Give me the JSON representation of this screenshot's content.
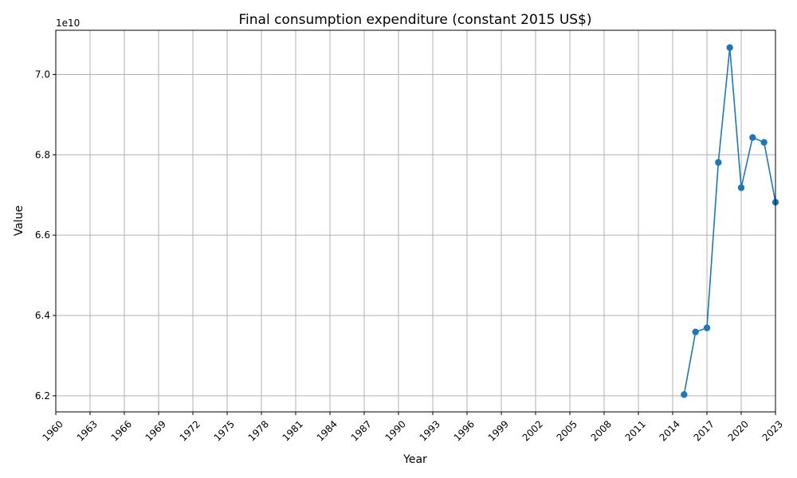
{
  "chart_data": {
    "type": "line",
    "title": "Final consumption expenditure (constant 2015 US$)",
    "xlabel": "Year",
    "ylabel": "Value",
    "y_offset_label": "1e10",
    "xlim": [
      1960,
      2023
    ],
    "ylim": [
      61600000000,
      71100000000
    ],
    "x_ticks": [
      1960,
      1963,
      1966,
      1969,
      1972,
      1975,
      1978,
      1981,
      1984,
      1987,
      1990,
      1993,
      1996,
      1999,
      2002,
      2005,
      2008,
      2011,
      2014,
      2017,
      2020,
      2023
    ],
    "y_ticks": [
      62000000000,
      64000000000,
      66000000000,
      68000000000,
      70000000000
    ],
    "y_tick_labels": [
      "6.2",
      "6.4",
      "6.6",
      "6.8",
      "7.0"
    ],
    "grid": true,
    "series": [
      {
        "color": "#1f77b4",
        "x": [
          2015,
          2016,
          2017,
          2018,
          2019,
          2020,
          2021,
          2022,
          2023
        ],
        "values": [
          62030000000,
          63590000000,
          63690000000,
          67810000000,
          70670000000,
          67180000000,
          68430000000,
          68310000000,
          66820000000
        ]
      }
    ]
  }
}
